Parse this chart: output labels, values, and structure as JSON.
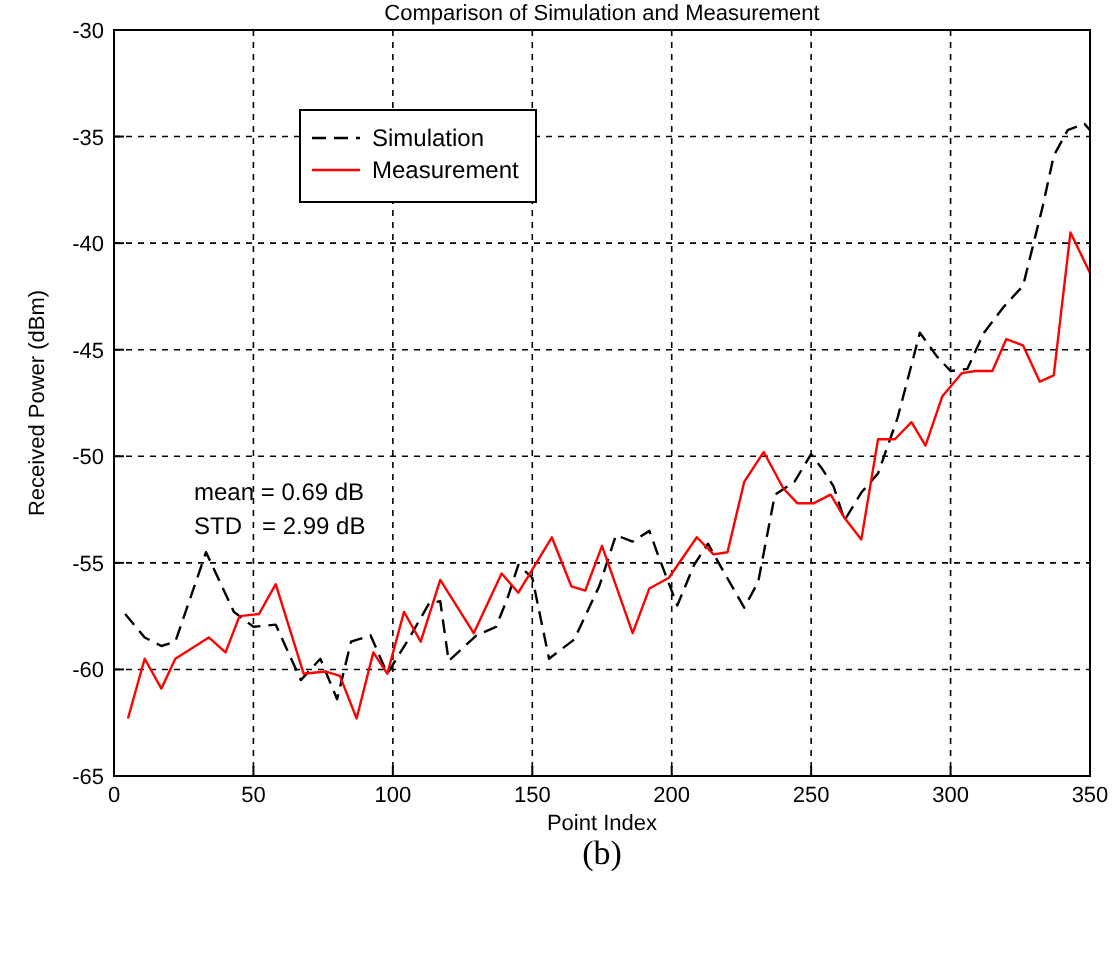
{
  "chart_data": {
    "type": "line",
    "title": "Comparison of Simulation and Measurement",
    "xlabel": "Point Index",
    "ylabel": "Received Power (dBm)",
    "xlim": [
      0,
      350
    ],
    "xticks": [
      0,
      50,
      100,
      150,
      200,
      250,
      300,
      350
    ],
    "ylim": [
      -65,
      -30
    ],
    "yticks": [
      -65,
      -60,
      -55,
      -50,
      -45,
      -40,
      -35,
      -30
    ],
    "grid": true,
    "legend": "top left",
    "annotations": [
      "mean = 0.69 dB",
      "STD   = 2.99 dB",
      "(b)"
    ],
    "series": [
      {
        "name": "Simulation",
        "color": "#000000",
        "line_style": "dashed",
        "x": [
          4,
          11,
          17,
          22,
          33,
          43,
          50,
          58,
          67,
          74,
          80,
          85,
          92,
          98,
          106,
          113,
          117,
          120,
          130,
          137,
          141,
          145,
          150,
          156,
          165,
          174,
          180,
          186,
          192,
          195,
          202,
          208,
          213,
          219,
          226,
          231,
          237,
          244,
          250,
          254,
          258,
          262,
          268,
          274,
          281,
          289,
          295,
          300,
          306,
          312,
          319,
          326,
          333,
          337,
          342,
          348,
          350
        ],
        "values": [
          -57.4,
          -58.5,
          -58.9,
          -58.7,
          -54.5,
          -57.3,
          -58,
          -57.9,
          -60.5,
          -59.5,
          -61.4,
          -58.7,
          -58.4,
          -60.2,
          -58.5,
          -56.9,
          -56.8,
          -59.6,
          -58.4,
          -58,
          -56.7,
          -55.1,
          -55.7,
          -59.5,
          -58.6,
          -56.1,
          -53.7,
          -54,
          -53.5,
          -54.6,
          -57,
          -55.1,
          -54.1,
          -55.5,
          -57.1,
          -55.9,
          -51.8,
          -51.2,
          -49.9,
          -50.6,
          -51.4,
          -53,
          -51.7,
          -50.8,
          -48.2,
          -44.2,
          -45.3,
          -46,
          -45.9,
          -44.2,
          -43,
          -42,
          -38.3,
          -35.9,
          -34.7,
          -34.4,
          -34.7
        ]
      },
      {
        "name": "Measurement",
        "color": "#ff0000",
        "line_style": "solid",
        "x": [
          5,
          11,
          17,
          22,
          34,
          40,
          45,
          52,
          58,
          68,
          76,
          81,
          87,
          93,
          98,
          104,
          110,
          117,
          129,
          139,
          145,
          157,
          164,
          169,
          175,
          186,
          192,
          199,
          209,
          215,
          220,
          226,
          233,
          240,
          245,
          251,
          257,
          262,
          268,
          274,
          280,
          286,
          291,
          297,
          304,
          309,
          315,
          320,
          326,
          332,
          337,
          343,
          350
        ],
        "values": [
          -62.3,
          -59.5,
          -60.9,
          -59.5,
          -58.5,
          -59.2,
          -57.5,
          -57.4,
          -56,
          -60.2,
          -60.1,
          -60.3,
          -62.3,
          -59.2,
          -60.2,
          -57.3,
          -58.7,
          -55.8,
          -58.3,
          -55.5,
          -56.4,
          -53.8,
          -56.1,
          -56.3,
          -54.2,
          -58.3,
          -56.2,
          -55.7,
          -53.8,
          -54.6,
          -54.5,
          -51.2,
          -49.8,
          -51.5,
          -52.2,
          -52.2,
          -51.8,
          -52.9,
          -53.9,
          -49.2,
          -49.2,
          -48.4,
          -49.5,
          -47.2,
          -46.1,
          -46,
          -46,
          -44.5,
          -44.8,
          -46.5,
          -46.2,
          -39.5,
          -41.4
        ]
      }
    ]
  }
}
